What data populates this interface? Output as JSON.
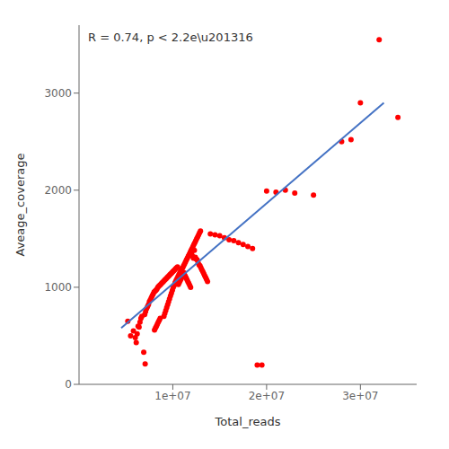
{
  "chart_data": {
    "type": "scatter",
    "xlabel": "Total_reads",
    "ylabel": "Aveage_coverage",
    "annotation": "R = 0.74, p < 2.2e\\u201316",
    "xlim": [
      0,
      36000000
    ],
    "ylim": [
      0,
      3700
    ],
    "xticks": [
      {
        "value": 10000000,
        "label": "1e+07"
      },
      {
        "value": 20000000,
        "label": "2e+07"
      },
      {
        "value": 30000000,
        "label": "3e+07"
      }
    ],
    "yticks": [
      0,
      1000,
      2000,
      3000
    ],
    "series": [
      {
        "type": "scatter",
        "color": "#FF0000",
        "x": [
          5200000,
          5500000,
          5800000,
          6000000,
          6200000,
          6300000,
          6400000,
          6500000,
          6600000,
          6700000,
          7000000,
          7100000,
          7200000,
          7300000,
          7400000,
          7500000,
          7600000,
          7700000,
          7800000,
          7900000,
          8000000,
          8100000,
          8200000,
          8300000,
          8400000,
          8500000,
          8600000,
          8700000,
          8800000,
          8900000,
          9000000,
          9100000,
          9200000,
          9300000,
          9400000,
          9500000,
          9600000,
          9700000,
          9800000,
          9900000,
          10000000,
          10100000,
          10200000,
          10300000,
          10400000,
          10500000,
          10600000,
          10700000,
          10800000,
          10900000,
          11000000,
          11100000,
          11200000,
          11300000,
          11400000,
          11500000,
          11600000,
          11700000,
          11800000,
          11900000,
          12000000,
          12100000,
          12200000,
          12300000,
          12400000,
          12500000,
          12600000,
          12700000,
          12800000,
          12900000,
          13000000,
          13100000,
          13200000,
          13300000,
          13400000,
          13500000,
          13600000,
          13700000,
          14000000,
          14500000,
          15000000,
          15500000,
          16000000,
          16500000,
          17000000,
          17500000,
          18000000,
          18500000,
          19000000,
          19500000,
          20000000,
          21000000,
          22000000,
          23000000,
          25000000,
          28000000,
          29000000,
          30000000,
          32000000,
          34000000,
          6100000,
          6900000,
          7050000,
          8050000,
          8150000,
          8250000,
          8350000,
          8450000,
          8550000,
          8650000,
          9050000,
          9150000,
          9250000,
          9350000,
          9450000,
          9550000,
          9650000,
          9750000,
          9850000,
          9950000,
          10050000,
          10150000,
          10250000,
          10350000,
          10450000,
          10550000,
          10650000,
          10750000,
          10850000,
          10950000,
          11050000,
          11150000,
          11250000,
          11350000,
          11450000,
          11550000,
          11650000,
          11750000,
          11850000,
          11950000,
          12050000,
          12150000,
          12250000,
          12350000,
          12450000,
          12550000,
          12650000,
          12750000,
          12850000,
          12950000
        ],
        "values": [
          650,
          500,
          550,
          480,
          520,
          600,
          590,
          640,
          680,
          700,
          720,
          750,
          780,
          800,
          820,
          850,
          870,
          890,
          910,
          930,
          950,
          960,
          970,
          980,
          1000,
          1010,
          1020,
          1030,
          1040,
          1050,
          1060,
          1070,
          1080,
          1090,
          1100,
          1110,
          1120,
          1130,
          1140,
          1150,
          1160,
          1170,
          1180,
          1190,
          1200,
          1210,
          1030,
          1050,
          1070,
          1090,
          1110,
          1130,
          1150,
          1120,
          1100,
          1080,
          1060,
          1040,
          1020,
          1000,
          1350,
          1320,
          1300,
          1380,
          1310,
          1290,
          1280,
          1250,
          1230,
          1220,
          1200,
          1180,
          1160,
          1140,
          1120,
          1100,
          1080,
          1060,
          1550,
          1540,
          1530,
          1510,
          1490,
          1480,
          1460,
          1440,
          1420,
          1400,
          200,
          200,
          1990,
          1980,
          2000,
          1970,
          1950,
          2500,
          2520,
          2900,
          3550,
          2750,
          430,
          330,
          210,
          560,
          580,
          600,
          620,
          640,
          660,
          680,
          700,
          730,
          760,
          790,
          820,
          850,
          880,
          910,
          940,
          970,
          1000,
          1020,
          1050,
          1070,
          1090,
          1110,
          1130,
          1150,
          1170,
          1190,
          1200,
          1220,
          1240,
          1260,
          1280,
          1300,
          1320,
          1340,
          1360,
          1380,
          1400,
          1420,
          1440,
          1460,
          1480,
          1500,
          1520,
          1540,
          1560,
          1580
        ]
      },
      {
        "type": "line",
        "color": "#4472C4",
        "x": [
          4500000,
          32500000
        ],
        "values": [
          580,
          2900
        ]
      }
    ]
  }
}
